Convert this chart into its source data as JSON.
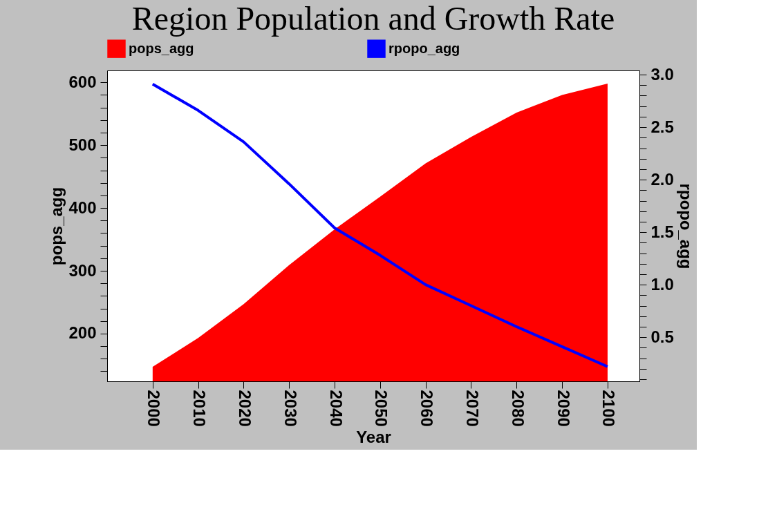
{
  "chart_data": {
    "type": "area",
    "title": "Region Population and Growth Rate",
    "xlabel": "Year",
    "ylabel": "pops_agg",
    "y2label": "rpopo_agg",
    "x": [
      2000,
      2010,
      2020,
      2030,
      2040,
      2050,
      2060,
      2070,
      2080,
      2090,
      2100
    ],
    "series": [
      {
        "name": "pops_agg",
        "color": "#ff0000",
        "values": [
          147,
          193,
          247,
          309,
          366,
          418,
          471,
          513,
          552,
          580,
          598
        ]
      },
      {
        "name": "rpopo_agg",
        "type": "line",
        "axis": "y2",
        "color": "#0000ff",
        "values": [
          2.91,
          2.66,
          2.36,
          1.96,
          1.54,
          1.28,
          1.0,
          0.8,
          0.6,
          0.41,
          0.22
        ]
      }
    ],
    "xlim": [
      1990,
      2107
    ],
    "xticks": [
      2000,
      2010,
      2020,
      2030,
      2040,
      2050,
      2060,
      2070,
      2080,
      2090,
      2100
    ],
    "ylim": [
      124,
      619
    ],
    "yticks": [
      {
        "value": 140,
        "label": null
      },
      {
        "value": 160,
        "label": null
      },
      {
        "value": 180,
        "label": null
      },
      200,
      {
        "value": 220,
        "label": null
      },
      {
        "value": 240,
        "label": null
      },
      {
        "value": 260,
        "label": null
      },
      {
        "value": 280,
        "label": null
      },
      300,
      {
        "value": 320,
        "label": null
      },
      {
        "value": 340,
        "label": null
      },
      {
        "value": 360,
        "label": null
      },
      {
        "value": 380,
        "label": null
      },
      400,
      {
        "value": 420,
        "label": null
      },
      {
        "value": 440,
        "label": null
      },
      {
        "value": 460,
        "label": null
      },
      {
        "value": 480,
        "label": null
      },
      500,
      {
        "value": 520,
        "label": null
      },
      {
        "value": 540,
        "label": null
      },
      {
        "value": 560,
        "label": null
      },
      {
        "value": 580,
        "label": null
      },
      600
    ],
    "y2lim": [
      0.08,
      3.04
    ],
    "y2ticks": [
      {
        "value": 0.1,
        "label": null
      },
      {
        "value": 0.2,
        "label": null
      },
      {
        "value": 0.3,
        "label": null
      },
      {
        "value": 0.4,
        "label": null
      },
      {
        "value": 0.5,
        "label": "0.5"
      },
      {
        "value": 0.6,
        "label": null
      },
      {
        "value": 0.7,
        "label": null
      },
      {
        "value": 0.8,
        "label": null
      },
      {
        "value": 0.9,
        "label": null
      },
      {
        "value": 1.0,
        "label": "1.0"
      },
      {
        "value": 1.1,
        "label": null
      },
      {
        "value": 1.2,
        "label": null
      },
      {
        "value": 1.3,
        "label": null
      },
      {
        "value": 1.4,
        "label": null
      },
      {
        "value": 1.5,
        "label": "1.5"
      },
      {
        "value": 1.6,
        "label": null
      },
      {
        "value": 1.7,
        "label": null
      },
      {
        "value": 1.8,
        "label": null
      },
      {
        "value": 1.9,
        "label": null
      },
      {
        "value": 2.0,
        "label": "2.0"
      },
      {
        "value": 2.1,
        "label": null
      },
      {
        "value": 2.2,
        "label": null
      },
      {
        "value": 2.3,
        "label": null
      },
      {
        "value": 2.4,
        "label": null
      },
      {
        "value": 2.5,
        "label": "2.5"
      },
      {
        "value": 2.6,
        "label": null
      },
      {
        "value": 2.7,
        "label": null
      },
      {
        "value": 2.8,
        "label": null
      },
      {
        "value": 2.9,
        "label": null
      },
      {
        "value": 3.0,
        "label": "3.0"
      }
    ],
    "legend": "top",
    "grid": false
  }
}
